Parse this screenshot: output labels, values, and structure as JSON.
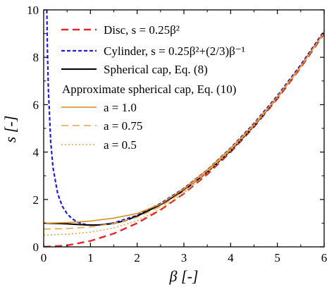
{
  "chart_data": {
    "type": "line",
    "xlabel": "β [-]",
    "ylabel": "s [-]",
    "xlim": [
      0,
      6
    ],
    "ylim": [
      0,
      10
    ],
    "xticks": [
      "0",
      "1",
      "2",
      "3",
      "4",
      "5",
      "6"
    ],
    "yticks": [
      "0",
      "2",
      "4",
      "6",
      "8",
      "10"
    ],
    "grid": false,
    "legend_placement": "top-left",
    "legend_subheader": "Approximate spherical cap, Eq. (10)",
    "series": [
      {
        "name": "Disc, s = 0.25β²",
        "color": "#e8262a",
        "style": "dashed",
        "x": [
          0.0,
          0.5,
          1.0,
          1.5,
          2.0,
          2.5,
          3.0,
          3.5,
          4.0,
          4.5,
          5.0,
          5.5,
          6.0
        ],
        "y": [
          0.0,
          0.06,
          0.25,
          0.56,
          1.0,
          1.56,
          2.25,
          3.06,
          4.0,
          5.06,
          6.25,
          7.56,
          9.0
        ]
      },
      {
        "name": "Cylinder, s = 0.25β²+(2/3)β⁻¹",
        "color": "#1e1edc",
        "style": "dashed-short",
        "x": [
          0.067,
          0.08,
          0.1,
          0.15,
          0.2,
          0.3,
          0.4,
          0.5,
          0.6,
          0.7,
          0.8,
          0.9,
          1.0,
          1.2,
          1.5,
          2.0,
          2.5,
          3.0,
          3.5,
          4.0,
          4.5,
          5.0,
          5.5,
          6.0
        ],
        "y": [
          10.0,
          8.33,
          6.67,
          4.45,
          3.34,
          2.24,
          1.71,
          1.4,
          1.2,
          1.07,
          0.99,
          0.94,
          0.92,
          0.92,
          1.01,
          1.33,
          1.83,
          2.47,
          3.25,
          4.17,
          5.21,
          6.38,
          7.68,
          9.11
        ]
      },
      {
        "name": "Spherical cap, Eq. (8)",
        "color": "#000000",
        "style": "solid",
        "x": [
          0.0,
          0.25,
          0.5,
          0.75,
          1.0,
          1.25,
          1.5,
          1.75,
          2.0,
          2.5,
          3.0,
          3.5,
          4.0,
          4.5,
          5.0,
          5.5,
          6.0
        ],
        "y": [
          1.0,
          0.99,
          0.97,
          0.94,
          0.92,
          0.93,
          0.99,
          1.11,
          1.3,
          1.78,
          2.38,
          3.15,
          4.05,
          5.1,
          6.3,
          7.62,
          9.05
        ]
      },
      {
        "name": "a = 1.0",
        "color": "#d98c1f",
        "style": "solid",
        "x": [
          0.0,
          0.5,
          1.0,
          1.5,
          2.0,
          2.5,
          3.0,
          3.5,
          4.0,
          4.5,
          5.0,
          5.5,
          6.0
        ],
        "y": [
          1.0,
          1.02,
          1.09,
          1.21,
          1.41,
          1.8,
          2.45,
          3.25,
          4.15,
          5.17,
          6.33,
          7.62,
          9.05
        ]
      },
      {
        "name": "a = 0.75",
        "color": "#e9a345",
        "style": "dashed",
        "x": [
          0.0,
          0.5,
          1.0,
          1.5,
          2.0,
          2.5,
          3.0,
          3.5,
          4.0,
          4.5,
          5.0,
          5.5,
          6.0
        ],
        "y": [
          0.75,
          0.77,
          0.84,
          0.99,
          1.25,
          1.7,
          2.36,
          3.18,
          4.1,
          5.13,
          6.31,
          7.6,
          9.04
        ]
      },
      {
        "name": "a = 0.5",
        "color": "#e9a345",
        "style": "dotted",
        "x": [
          0.0,
          0.5,
          1.0,
          1.5,
          2.0,
          2.5,
          3.0,
          3.5,
          4.0,
          4.5,
          5.0,
          5.5,
          6.0
        ],
        "y": [
          0.5,
          0.53,
          0.62,
          0.8,
          1.1,
          1.6,
          2.28,
          3.12,
          4.06,
          5.1,
          6.29,
          7.59,
          9.03
        ]
      }
    ]
  }
}
